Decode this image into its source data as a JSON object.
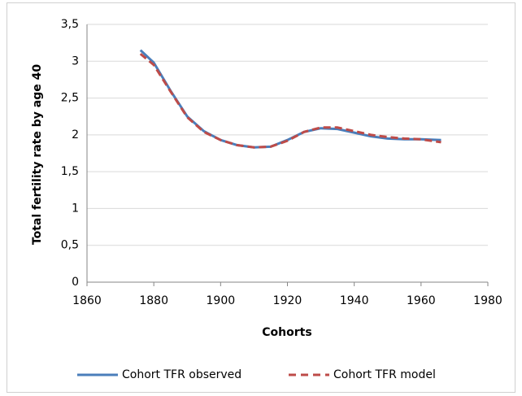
{
  "chart_data": {
    "type": "line",
    "xlabel": "Cohorts",
    "ylabel": "Total fertility rate by age 40",
    "x": [
      1876,
      1880,
      1885,
      1890,
      1895,
      1900,
      1905,
      1910,
      1915,
      1920,
      1925,
      1930,
      1935,
      1940,
      1945,
      1950,
      1955,
      1960,
      1966
    ],
    "series": [
      {
        "name": "Cohort TFR observed",
        "color": "#4a7ebb",
        "dashed": false,
        "values": [
          3.15,
          2.98,
          2.6,
          2.25,
          2.05,
          1.93,
          1.86,
          1.83,
          1.84,
          1.93,
          2.04,
          2.09,
          2.08,
          2.03,
          1.98,
          1.95,
          1.94,
          1.94,
          1.93
        ]
      },
      {
        "name": "Cohort TFR model",
        "color": "#be4b48",
        "dashed": true,
        "values": [
          3.1,
          2.95,
          2.59,
          2.24,
          2.04,
          1.93,
          1.86,
          1.83,
          1.84,
          1.92,
          2.04,
          2.1,
          2.1,
          2.05,
          2.0,
          1.97,
          1.95,
          1.94,
          1.9
        ]
      }
    ],
    "xlim": [
      1860,
      1980
    ],
    "xticks": [
      1860,
      1880,
      1900,
      1920,
      1940,
      1960,
      1980
    ],
    "ylim": [
      0,
      3.5
    ],
    "yticks": [
      0,
      {
        "value": 0.5,
        "label": "0,5"
      },
      1,
      {
        "value": 1.5,
        "label": "1,5"
      },
      2,
      {
        "value": 2.5,
        "label": "2,5"
      },
      3,
      {
        "value": 3.5,
        "label": "3,5"
      }
    ],
    "grid": true,
    "legend": "bottom"
  }
}
